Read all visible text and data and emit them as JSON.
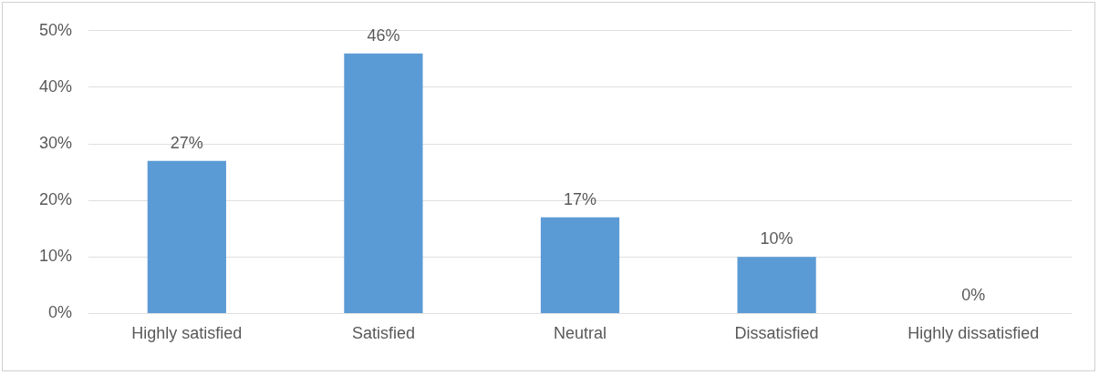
{
  "chart_data": {
    "type": "bar",
    "categories": [
      "Highly satisfied",
      "Satisfied",
      "Neutral",
      "Dissatisfied",
      "Highly dissatisfied"
    ],
    "values": [
      27,
      46,
      17,
      10,
      0
    ],
    "value_labels": [
      "27%",
      "46%",
      "17%",
      "10%",
      "0%"
    ],
    "color": "#5b9bd5",
    "ylim": [
      0,
      50
    ],
    "yticks": [
      {
        "value": 0,
        "label": "0%"
      },
      {
        "value": 10,
        "label": "10%"
      },
      {
        "value": 20,
        "label": "20%"
      },
      {
        "value": 30,
        "label": "30%"
      },
      {
        "value": 40,
        "label": "40%"
      },
      {
        "value": 50,
        "label": "50%"
      }
    ],
    "grid": "y",
    "legend": false
  }
}
